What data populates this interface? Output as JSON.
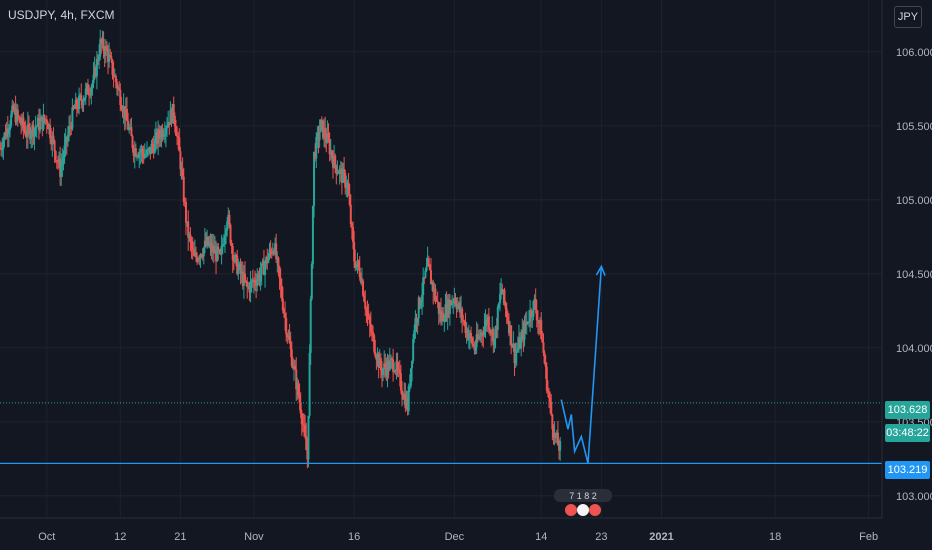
{
  "header": {
    "symbol_title": "USDJPY, 4h, FXCM",
    "currency_badge": "JPY"
  },
  "price_tags": {
    "last_price": "103.628",
    "countdown": "03:48:22",
    "line_price": "103.219"
  },
  "colors": {
    "background": "#131722",
    "up": "#26a69a",
    "down": "#ef5350",
    "drawing": "#2196f3",
    "grid": "#1e222d",
    "text": "#b2b5be"
  },
  "events_badge": "7 1 8 2",
  "chart_data": {
    "type": "candlestick",
    "title": "USDJPY, 4h, FXCM",
    "ylim": [
      102.85,
      106.35
    ],
    "y_ticks": [
      103.0,
      103.5,
      104.0,
      104.5,
      105.0,
      105.5,
      106.0
    ],
    "y_tick_labels": [
      "103.000",
      "103.500",
      "104.000",
      "104.500",
      "105.000",
      "105.500",
      "106.000"
    ],
    "x_range": [
      "2020-09-24",
      "2021-02-03"
    ],
    "x_ticks": [
      {
        "date": "2020-10-01",
        "label": "Oct"
      },
      {
        "date": "2020-10-12",
        "label": "12"
      },
      {
        "date": "2020-10-21",
        "label": "21"
      },
      {
        "date": "2020-11-01",
        "label": "Nov"
      },
      {
        "date": "2020-11-16",
        "label": "16"
      },
      {
        "date": "2020-12-01",
        "label": "Dec"
      },
      {
        "date": "2020-12-14",
        "label": "14"
      },
      {
        "date": "2020-12-23",
        "label": "23"
      },
      {
        "date": "2021-01-01",
        "label": "2021"
      },
      {
        "date": "2021-01-18",
        "label": "18"
      },
      {
        "date": "2021-02-01",
        "label": "Feb"
      }
    ],
    "price_path": [
      [
        "2020-09-24",
        105.35
      ],
      [
        "2020-09-26",
        105.6
      ],
      [
        "2020-09-28",
        105.45
      ],
      [
        "2020-10-01",
        105.55
      ],
      [
        "2020-10-03",
        105.2
      ],
      [
        "2020-10-05",
        105.6
      ],
      [
        "2020-10-08",
        105.8
      ],
      [
        "2020-10-09",
        106.05
      ],
      [
        "2020-10-10",
        106.0
      ],
      [
        "2020-10-12",
        105.7
      ],
      [
        "2020-10-14",
        105.35
      ],
      [
        "2020-10-16",
        105.3
      ],
      [
        "2020-10-18",
        105.45
      ],
      [
        "2020-10-20",
        105.6
      ],
      [
        "2020-10-21",
        105.25
      ],
      [
        "2020-10-22",
        104.8
      ],
      [
        "2020-10-23",
        104.6
      ],
      [
        "2020-10-25",
        104.7
      ],
      [
        "2020-10-27",
        104.6
      ],
      [
        "2020-10-28",
        104.9
      ],
      [
        "2020-10-29",
        104.6
      ],
      [
        "2020-10-31",
        104.4
      ],
      [
        "2020-11-02",
        104.5
      ],
      [
        "2020-11-04",
        104.7
      ],
      [
        "2020-11-05",
        104.4
      ],
      [
        "2020-11-06",
        104.1
      ],
      [
        "2020-11-08",
        103.6
      ],
      [
        "2020-11-09",
        103.25
      ],
      [
        "2020-11-10",
        105.3
      ],
      [
        "2020-11-11",
        105.5
      ],
      [
        "2020-11-12",
        105.4
      ],
      [
        "2020-11-13",
        105.25
      ],
      [
        "2020-11-15",
        105.1
      ],
      [
        "2020-11-16",
        104.6
      ],
      [
        "2020-11-17",
        104.5
      ],
      [
        "2020-11-18",
        104.2
      ],
      [
        "2020-11-20",
        103.85
      ],
      [
        "2020-11-22",
        103.9
      ],
      [
        "2020-11-24",
        103.6
      ],
      [
        "2020-11-25",
        104.15
      ],
      [
        "2020-11-27",
        104.55
      ],
      [
        "2020-11-29",
        104.2
      ],
      [
        "2020-12-01",
        104.35
      ],
      [
        "2020-12-03",
        104.1
      ],
      [
        "2020-12-04",
        104.0
      ],
      [
        "2020-12-06",
        104.2
      ],
      [
        "2020-12-07",
        104.05
      ],
      [
        "2020-12-08",
        104.4
      ],
      [
        "2020-12-09",
        104.2
      ],
      [
        "2020-12-10",
        103.95
      ],
      [
        "2020-12-11",
        104.05
      ],
      [
        "2020-12-12",
        104.2
      ],
      [
        "2020-12-13",
        104.3
      ],
      [
        "2020-12-14",
        104.1
      ],
      [
        "2020-12-15",
        103.7
      ],
      [
        "2020-12-16",
        103.4
      ],
      [
        "2020-12-17",
        103.3
      ]
    ],
    "horizontal_line": 103.219,
    "last_price_line": 103.628,
    "projection_path": [
      [
        "2020-12-17",
        103.65
      ],
      [
        "2020-12-18",
        103.45
      ],
      [
        "2020-12-18",
        103.55
      ],
      [
        "2020-12-19",
        103.3
      ],
      [
        "2020-12-20",
        103.4
      ],
      [
        "2020-12-21",
        103.22
      ],
      [
        "2020-12-23",
        104.55
      ]
    ]
  }
}
